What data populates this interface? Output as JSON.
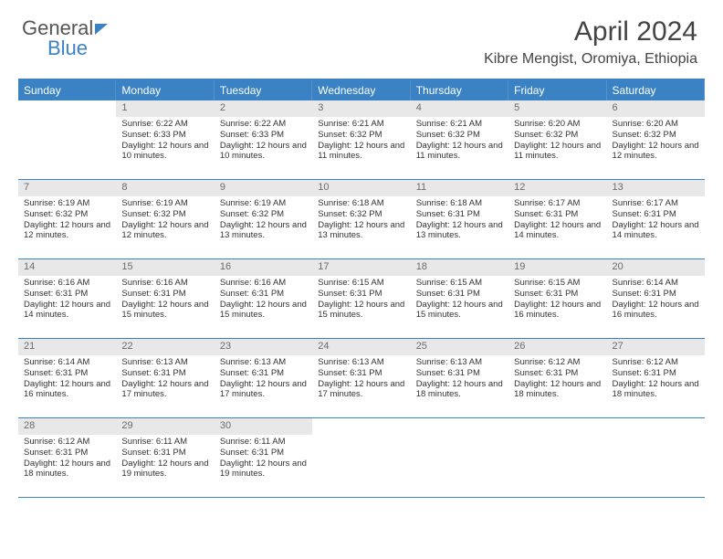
{
  "brand": {
    "part1": "General",
    "part2": "Blue"
  },
  "title": "April 2024",
  "location": "Kibre Mengist, Oromiya, Ethiopia",
  "colors": {
    "header_bg": "#3b82c4",
    "header_text": "#ffffff",
    "daynum_bg": "#e8e8e8",
    "daynum_text": "#6b6b6b",
    "text": "#333333",
    "rule": "#3b82c4",
    "background": "#ffffff"
  },
  "weekdays": [
    "Sunday",
    "Monday",
    "Tuesday",
    "Wednesday",
    "Thursday",
    "Friday",
    "Saturday"
  ],
  "weeks": [
    [
      {
        "n": "",
        "sr": "",
        "ss": "",
        "dl": ""
      },
      {
        "n": "1",
        "sr": "Sunrise: 6:22 AM",
        "ss": "Sunset: 6:33 PM",
        "dl": "Daylight: 12 hours and 10 minutes."
      },
      {
        "n": "2",
        "sr": "Sunrise: 6:22 AM",
        "ss": "Sunset: 6:33 PM",
        "dl": "Daylight: 12 hours and 10 minutes."
      },
      {
        "n": "3",
        "sr": "Sunrise: 6:21 AM",
        "ss": "Sunset: 6:32 PM",
        "dl": "Daylight: 12 hours and 11 minutes."
      },
      {
        "n": "4",
        "sr": "Sunrise: 6:21 AM",
        "ss": "Sunset: 6:32 PM",
        "dl": "Daylight: 12 hours and 11 minutes."
      },
      {
        "n": "5",
        "sr": "Sunrise: 6:20 AM",
        "ss": "Sunset: 6:32 PM",
        "dl": "Daylight: 12 hours and 11 minutes."
      },
      {
        "n": "6",
        "sr": "Sunrise: 6:20 AM",
        "ss": "Sunset: 6:32 PM",
        "dl": "Daylight: 12 hours and 12 minutes."
      }
    ],
    [
      {
        "n": "7",
        "sr": "Sunrise: 6:19 AM",
        "ss": "Sunset: 6:32 PM",
        "dl": "Daylight: 12 hours and 12 minutes."
      },
      {
        "n": "8",
        "sr": "Sunrise: 6:19 AM",
        "ss": "Sunset: 6:32 PM",
        "dl": "Daylight: 12 hours and 12 minutes."
      },
      {
        "n": "9",
        "sr": "Sunrise: 6:19 AM",
        "ss": "Sunset: 6:32 PM",
        "dl": "Daylight: 12 hours and 13 minutes."
      },
      {
        "n": "10",
        "sr": "Sunrise: 6:18 AM",
        "ss": "Sunset: 6:32 PM",
        "dl": "Daylight: 12 hours and 13 minutes."
      },
      {
        "n": "11",
        "sr": "Sunrise: 6:18 AM",
        "ss": "Sunset: 6:31 PM",
        "dl": "Daylight: 12 hours and 13 minutes."
      },
      {
        "n": "12",
        "sr": "Sunrise: 6:17 AM",
        "ss": "Sunset: 6:31 PM",
        "dl": "Daylight: 12 hours and 14 minutes."
      },
      {
        "n": "13",
        "sr": "Sunrise: 6:17 AM",
        "ss": "Sunset: 6:31 PM",
        "dl": "Daylight: 12 hours and 14 minutes."
      }
    ],
    [
      {
        "n": "14",
        "sr": "Sunrise: 6:16 AM",
        "ss": "Sunset: 6:31 PM",
        "dl": "Daylight: 12 hours and 14 minutes."
      },
      {
        "n": "15",
        "sr": "Sunrise: 6:16 AM",
        "ss": "Sunset: 6:31 PM",
        "dl": "Daylight: 12 hours and 15 minutes."
      },
      {
        "n": "16",
        "sr": "Sunrise: 6:16 AM",
        "ss": "Sunset: 6:31 PM",
        "dl": "Daylight: 12 hours and 15 minutes."
      },
      {
        "n": "17",
        "sr": "Sunrise: 6:15 AM",
        "ss": "Sunset: 6:31 PM",
        "dl": "Daylight: 12 hours and 15 minutes."
      },
      {
        "n": "18",
        "sr": "Sunrise: 6:15 AM",
        "ss": "Sunset: 6:31 PM",
        "dl": "Daylight: 12 hours and 15 minutes."
      },
      {
        "n": "19",
        "sr": "Sunrise: 6:15 AM",
        "ss": "Sunset: 6:31 PM",
        "dl": "Daylight: 12 hours and 16 minutes."
      },
      {
        "n": "20",
        "sr": "Sunrise: 6:14 AM",
        "ss": "Sunset: 6:31 PM",
        "dl": "Daylight: 12 hours and 16 minutes."
      }
    ],
    [
      {
        "n": "21",
        "sr": "Sunrise: 6:14 AM",
        "ss": "Sunset: 6:31 PM",
        "dl": "Daylight: 12 hours and 16 minutes."
      },
      {
        "n": "22",
        "sr": "Sunrise: 6:13 AM",
        "ss": "Sunset: 6:31 PM",
        "dl": "Daylight: 12 hours and 17 minutes."
      },
      {
        "n": "23",
        "sr": "Sunrise: 6:13 AM",
        "ss": "Sunset: 6:31 PM",
        "dl": "Daylight: 12 hours and 17 minutes."
      },
      {
        "n": "24",
        "sr": "Sunrise: 6:13 AM",
        "ss": "Sunset: 6:31 PM",
        "dl": "Daylight: 12 hours and 17 minutes."
      },
      {
        "n": "25",
        "sr": "Sunrise: 6:13 AM",
        "ss": "Sunset: 6:31 PM",
        "dl": "Daylight: 12 hours and 18 minutes."
      },
      {
        "n": "26",
        "sr": "Sunrise: 6:12 AM",
        "ss": "Sunset: 6:31 PM",
        "dl": "Daylight: 12 hours and 18 minutes."
      },
      {
        "n": "27",
        "sr": "Sunrise: 6:12 AM",
        "ss": "Sunset: 6:31 PM",
        "dl": "Daylight: 12 hours and 18 minutes."
      }
    ],
    [
      {
        "n": "28",
        "sr": "Sunrise: 6:12 AM",
        "ss": "Sunset: 6:31 PM",
        "dl": "Daylight: 12 hours and 18 minutes."
      },
      {
        "n": "29",
        "sr": "Sunrise: 6:11 AM",
        "ss": "Sunset: 6:31 PM",
        "dl": "Daylight: 12 hours and 19 minutes."
      },
      {
        "n": "30",
        "sr": "Sunrise: 6:11 AM",
        "ss": "Sunset: 6:31 PM",
        "dl": "Daylight: 12 hours and 19 minutes."
      },
      {
        "n": "",
        "sr": "",
        "ss": "",
        "dl": ""
      },
      {
        "n": "",
        "sr": "",
        "ss": "",
        "dl": ""
      },
      {
        "n": "",
        "sr": "",
        "ss": "",
        "dl": ""
      },
      {
        "n": "",
        "sr": "",
        "ss": "",
        "dl": ""
      }
    ]
  ]
}
